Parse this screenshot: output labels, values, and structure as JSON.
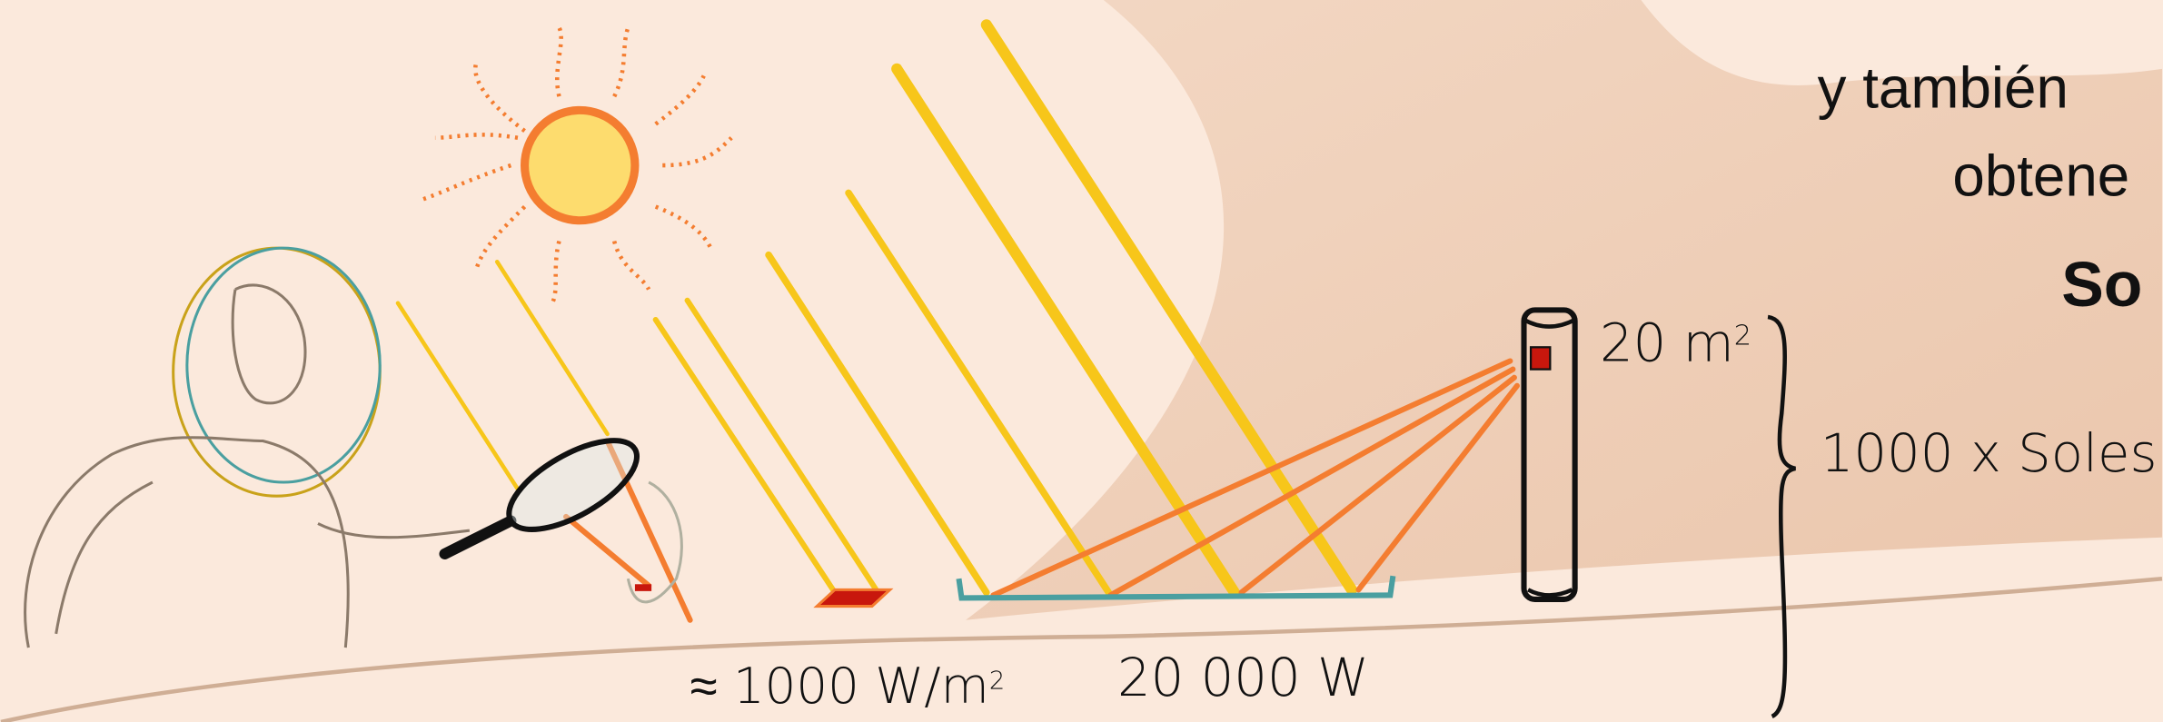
{
  "slide": {
    "lines": [
      "y también",
      "obtene",
      "So"
    ],
    "labels": {
      "area": {
        "text": "20 m",
        "exponent": "2"
      },
      "concentration": "1000 x Soles",
      "irradiance": {
        "text": "≈ 1000 W/m",
        "exponent": "2"
      },
      "power": "20 000 W"
    }
  }
}
